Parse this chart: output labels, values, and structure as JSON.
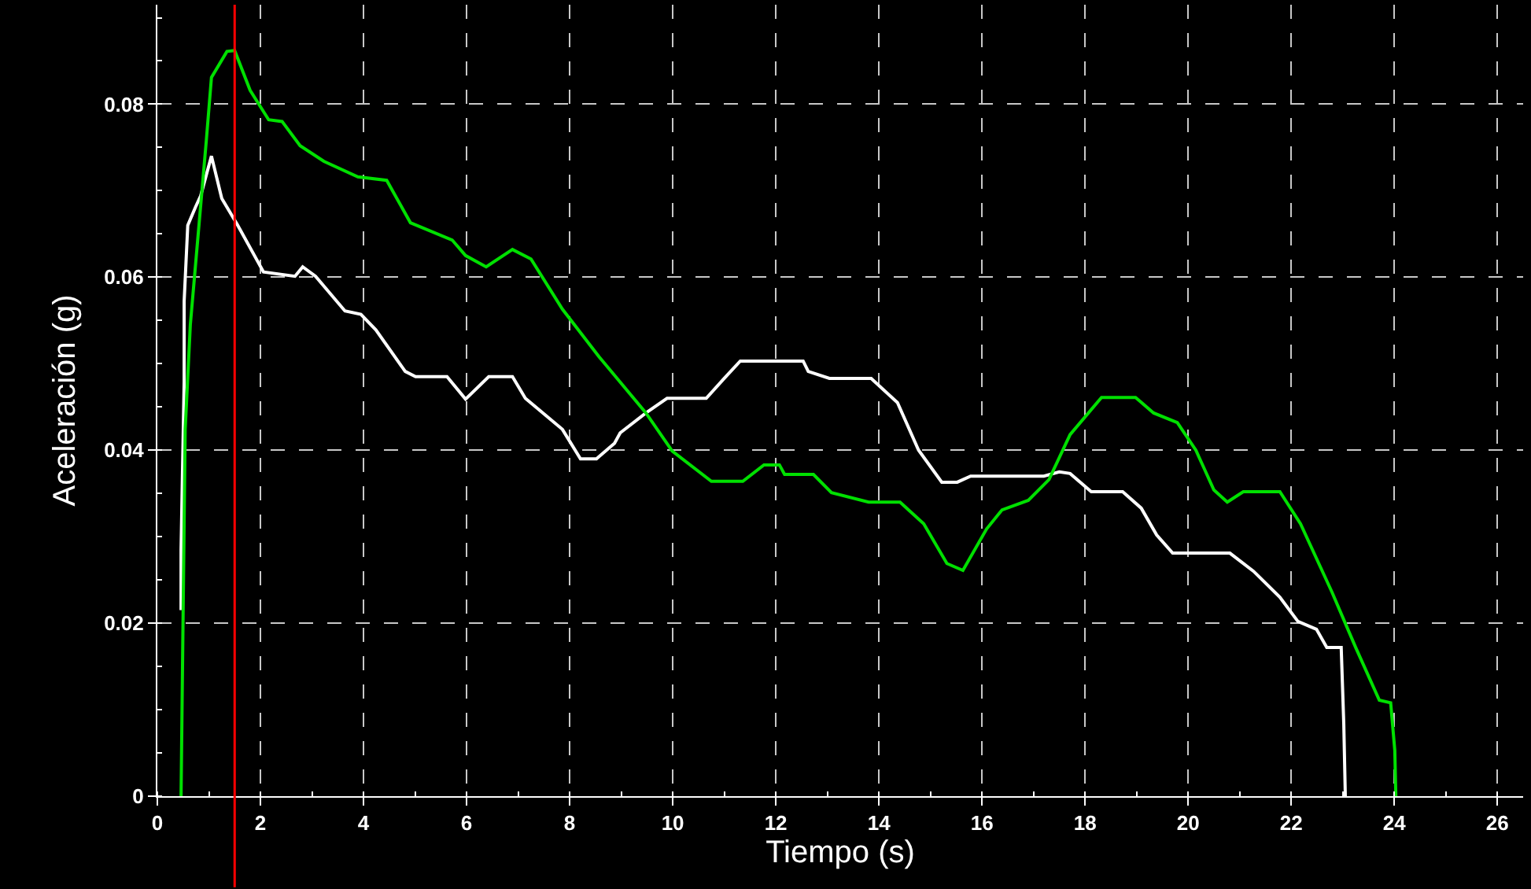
{
  "chart_data": {
    "type": "line",
    "xlabel": "Tiempo (s)",
    "ylabel": "Aceleración (g)",
    "xlim": [
      0,
      26.5
    ],
    "xticks": [
      0,
      2,
      4,
      6,
      8,
      10,
      12,
      14,
      16,
      18,
      20,
      22,
      24,
      26
    ],
    "ylim": [
      0,
      0.0915
    ],
    "yticks": [
      0,
      0.02,
      0.04,
      0.06,
      0.08
    ],
    "grid": true,
    "marker": "none",
    "line_style": "solid",
    "ref_lines": [
      {
        "axis": "x",
        "value": 1.5,
        "color": "#ff0000"
      }
    ],
    "series": [
      {
        "color": "#ffffff",
        "x": [
          0.46,
          0.46,
          0.52,
          0.52,
          0.59,
          0.74,
          0.84,
          1.05,
          1.25,
          1.55,
          2.06,
          2.67,
          2.82,
          3.07,
          3.64,
          3.95,
          4.24,
          4.81,
          5.01,
          5.62,
          5.98,
          6.43,
          6.89,
          7.14,
          7.86,
          8.21,
          8.52,
          8.87,
          8.98,
          9.48,
          9.89,
          10.65,
          11.0,
          11.31,
          12.53,
          12.63,
          13.04,
          13.85,
          14.36,
          14.77,
          15.22,
          15.52,
          15.78,
          17.2,
          17.5,
          17.71,
          18.12,
          18.73,
          19.09,
          19.39,
          19.7,
          20.81,
          21.27,
          21.78,
          22.13,
          22.49,
          22.69,
          22.97,
          23.02,
          23.05
        ],
        "values": [
          0.0215,
          0.0285,
          0.0479,
          0.0572,
          0.066,
          0.0681,
          0.0694,
          0.074,
          0.0691,
          0.0661,
          0.0606,
          0.0601,
          0.0612,
          0.0601,
          0.0561,
          0.0557,
          0.0539,
          0.0491,
          0.0485,
          0.0485,
          0.0459,
          0.0485,
          0.0485,
          0.046,
          0.0424,
          0.039,
          0.039,
          0.0408,
          0.042,
          0.0443,
          0.046,
          0.046,
          0.0483,
          0.0503,
          0.0503,
          0.0491,
          0.0483,
          0.0483,
          0.0455,
          0.04,
          0.0363,
          0.0363,
          0.037,
          0.037,
          0.0375,
          0.0373,
          0.0352,
          0.0352,
          0.0333,
          0.0302,
          0.0281,
          0.0281,
          0.026,
          0.023,
          0.0202,
          0.0193,
          0.0172,
          0.0172,
          0.0084,
          0
        ]
      },
      {
        "color": "#00e000",
        "x": [
          0.46,
          0.54,
          0.64,
          0.95,
          1.05,
          1.35,
          1.5,
          1.8,
          2.16,
          2.42,
          2.77,
          3.23,
          3.89,
          4.45,
          4.91,
          5.72,
          5.98,
          6.38,
          6.89,
          7.25,
          7.86,
          8.57,
          9.48,
          9.99,
          10.75,
          11.36,
          11.77,
          12.07,
          12.17,
          12.73,
          13.08,
          13.8,
          14.41,
          14.87,
          15.32,
          15.63,
          16.09,
          16.39,
          16.9,
          17.3,
          17.71,
          18.32,
          18.98,
          19.33,
          19.79,
          20.15,
          20.5,
          20.76,
          21.07,
          21.78,
          22.18,
          22.79,
          23.25,
          23.71,
          23.93,
          24.01,
          24.03
        ],
        "values": [
          0,
          0.0424,
          0.0545,
          0.0758,
          0.0831,
          0.0861,
          0.0862,
          0.0816,
          0.0782,
          0.078,
          0.0752,
          0.0734,
          0.0716,
          0.0712,
          0.0663,
          0.0643,
          0.0625,
          0.0612,
          0.0632,
          0.0621,
          0.0563,
          0.0508,
          0.0443,
          0.0399,
          0.0364,
          0.0364,
          0.0383,
          0.0383,
          0.0372,
          0.0372,
          0.0351,
          0.034,
          0.034,
          0.0315,
          0.0269,
          0.0261,
          0.0309,
          0.0331,
          0.0342,
          0.0366,
          0.0418,
          0.0461,
          0.0461,
          0.0443,
          0.0432,
          0.04,
          0.0354,
          0.034,
          0.0352,
          0.0352,
          0.0315,
          0.0236,
          0.0172,
          0.0111,
          0.0108,
          0.0053,
          0
        ]
      }
    ]
  }
}
